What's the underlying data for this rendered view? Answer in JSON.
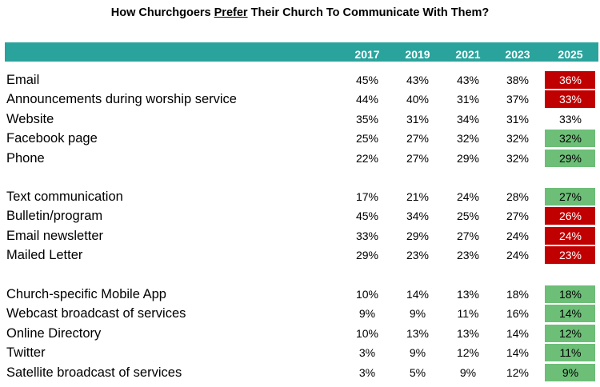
{
  "chart_data": {
    "type": "table",
    "title_parts": [
      "How Churchgoers ",
      "Prefer",
      " Their Church To Communicate With Them?"
    ],
    "years": [
      "2017",
      "2019",
      "2021",
      "2023",
      "2025"
    ],
    "groups": [
      [
        {
          "label": "Email",
          "values": [
            "45%",
            "43%",
            "43%",
            "38%",
            "36%"
          ],
          "highlight": "red"
        },
        {
          "label": "Announcements during worship service",
          "values": [
            "44%",
            "40%",
            "31%",
            "37%",
            "33%"
          ],
          "highlight": "red"
        },
        {
          "label": "Website",
          "values": [
            "35%",
            "31%",
            "34%",
            "31%",
            "33%"
          ],
          "highlight": "none"
        },
        {
          "label": "Facebook page",
          "values": [
            "25%",
            "27%",
            "32%",
            "32%",
            "32%"
          ],
          "highlight": "green"
        },
        {
          "label": "Phone",
          "values": [
            "22%",
            "27%",
            "29%",
            "32%",
            "29%"
          ],
          "highlight": "green"
        }
      ],
      [
        {
          "label": "Text communication",
          "values": [
            "17%",
            "21%",
            "24%",
            "28%",
            "27%"
          ],
          "highlight": "green"
        },
        {
          "label": "Bulletin/program",
          "values": [
            "45%",
            "34%",
            "25%",
            "27%",
            "26%"
          ],
          "highlight": "red"
        },
        {
          "label": "Email newsletter",
          "values": [
            "33%",
            "29%",
            "27%",
            "24%",
            "24%"
          ],
          "highlight": "red"
        },
        {
          "label": "Mailed Letter",
          "values": [
            "29%",
            "23%",
            "23%",
            "24%",
            "23%"
          ],
          "highlight": "red"
        }
      ],
      [
        {
          "label": "Church-specific Mobile App",
          "values": [
            "10%",
            "14%",
            "13%",
            "18%",
            "18%"
          ],
          "highlight": "green"
        },
        {
          "label": "Webcast broadcast of services",
          "values": [
            "9%",
            "9%",
            "11%",
            "16%",
            "14%"
          ],
          "highlight": "green"
        },
        {
          "label": "Online Directory",
          "values": [
            "10%",
            "13%",
            "13%",
            "14%",
            "12%"
          ],
          "highlight": "green"
        },
        {
          "label": "Twitter",
          "values": [
            "3%",
            "9%",
            "12%",
            "14%",
            "11%"
          ],
          "highlight": "green"
        },
        {
          "label": "Satellite broadcast of services",
          "values": [
            "3%",
            "5%",
            "9%",
            "12%",
            "9%"
          ],
          "highlight": "green"
        }
      ]
    ],
    "colors": {
      "header": "#2aa39c",
      "red": "#c00000",
      "green": "#6dbe77"
    }
  }
}
